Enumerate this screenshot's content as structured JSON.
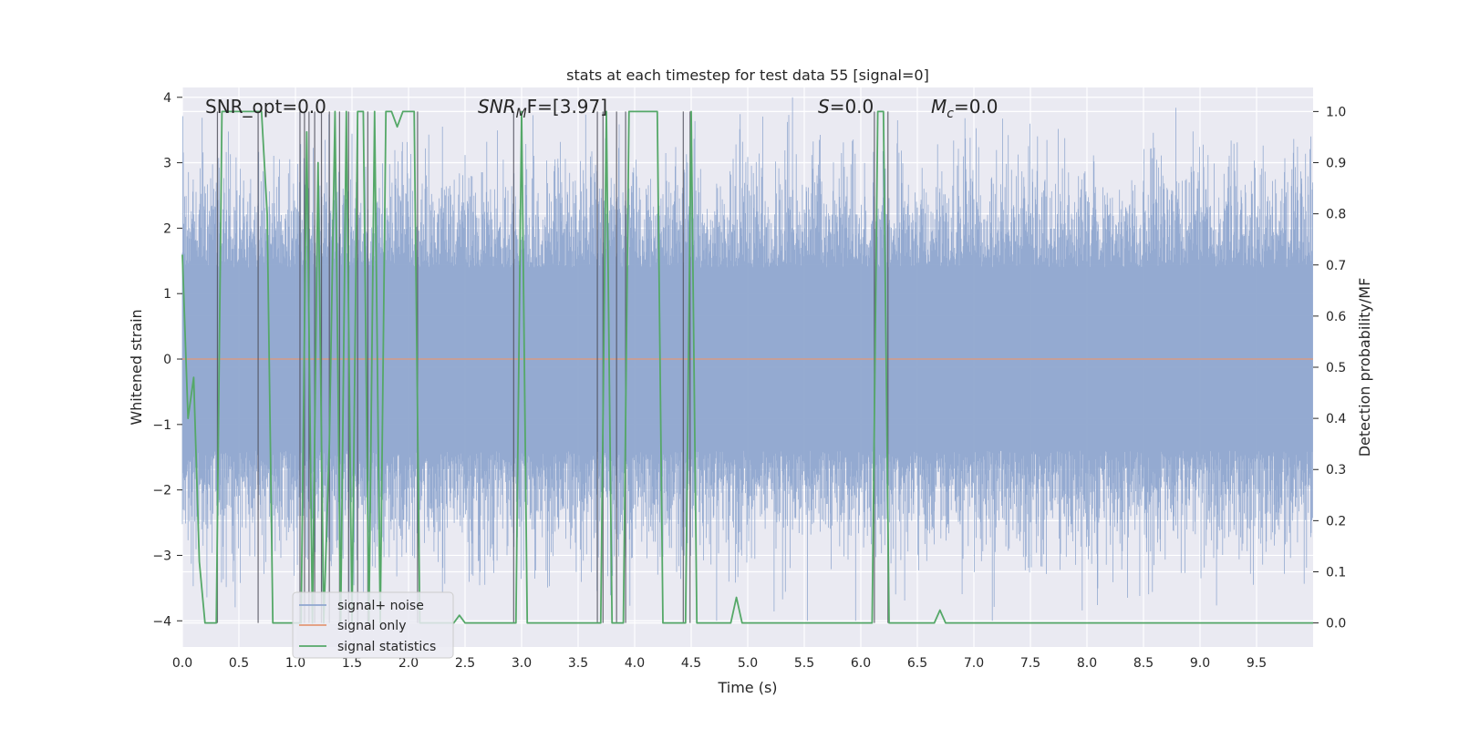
{
  "chart_data": {
    "type": "line",
    "title": "stats at each timestep for test data 55 [signal=0]",
    "xlabel": "Time (s)",
    "ylabel": "Whitened strain",
    "y2label": "Detection probability/MF",
    "xlim": [
      0.0,
      10.0
    ],
    "ylim": [
      -4.4,
      4.15
    ],
    "y2lim": [
      -0.047,
      1.047
    ],
    "xticks": [
      "0.0",
      "0.5",
      "1.0",
      "1.5",
      "2.0",
      "2.5",
      "3.0",
      "3.5",
      "4.0",
      "4.5",
      "5.0",
      "5.5",
      "6.0",
      "6.5",
      "7.0",
      "7.5",
      "8.0",
      "8.5",
      "9.0",
      "9.5"
    ],
    "yticks": [
      "4",
      "3",
      "2",
      "1",
      "0",
      "−1",
      "−2",
      "−3",
      "−4"
    ],
    "y2ticks": [
      "1.0",
      "0.9",
      "0.8",
      "0.7",
      "0.6",
      "0.5",
      "0.4",
      "0.3",
      "0.2",
      "0.1",
      "0.0"
    ],
    "grid": true,
    "legend_position": "lower-left",
    "annotations": [
      {
        "name": "snr-opt",
        "text": "SNR_opt=0.0"
      },
      {
        "name": "snr-mf",
        "text": "SNR",
        "sub": "M",
        "tail": "F=[3.97]"
      },
      {
        "name": "s-stat",
        "text": "S",
        "tail": "=0.0"
      },
      {
        "name": "mc",
        "text": "M",
        "sub": "c",
        "tail": "=0.0"
      }
    ],
    "series": [
      {
        "name": "signal+ noise",
        "color": "#8fa6cf",
        "description": "whitened strain noise, roughly symmetric around 0, amplitude about ±3.5"
      },
      {
        "name": "signal only",
        "color": "#e39877",
        "values": "constant 0"
      },
      {
        "name": "signal statistics",
        "color": "#55a868",
        "axis": "right",
        "x": [
          0.0,
          0.05,
          0.1,
          0.15,
          0.2,
          0.25,
          0.3,
          0.35,
          0.7,
          0.75,
          0.8,
          1.05,
          1.1,
          1.15,
          1.2,
          1.25,
          1.3,
          1.35,
          1.4,
          1.45,
          1.5,
          1.55,
          1.6,
          1.65,
          1.7,
          1.75,
          1.8,
          1.85,
          1.9,
          1.95,
          2.0,
          2.05,
          2.1,
          2.15,
          2.4,
          2.45,
          2.5,
          2.9,
          2.95,
          3.0,
          3.05,
          3.7,
          3.75,
          3.8,
          3.85,
          3.9,
          3.95,
          4.0,
          4.2,
          4.25,
          4.35,
          4.45,
          4.5,
          4.55,
          4.85,
          4.9,
          4.95,
          5.0,
          6.1,
          6.15,
          6.2,
          6.25,
          6.3,
          6.65,
          6.7,
          6.75,
          6.8,
          10.0
        ],
        "values": [
          0.72,
          0.4,
          0.48,
          0.12,
          0.0,
          0.0,
          0.0,
          1.0,
          1.0,
          0.8,
          0.0,
          0.0,
          0.96,
          0.0,
          0.9,
          0.0,
          0.35,
          1.0,
          0.0,
          1.0,
          0.0,
          1.0,
          1.0,
          0.0,
          1.0,
          0.0,
          1.0,
          1.0,
          0.97,
          1.0,
          1.0,
          1.0,
          0.0,
          0.0,
          0.0,
          0.015,
          0.0,
          0.0,
          0.0,
          1.0,
          0.0,
          0.0,
          1.0,
          0.0,
          0.0,
          0.0,
          1.0,
          1.0,
          1.0,
          0.0,
          0.0,
          0.0,
          1.0,
          0.0,
          0.0,
          0.05,
          0.0,
          0.0,
          0.0,
          1.0,
          1.0,
          0.0,
          0.0,
          0.0,
          0.025,
          0.0,
          0.0,
          0.0
        ]
      }
    ],
    "threshold_crossings_x": [
      0.31,
      0.67,
      1.04,
      1.08,
      1.12,
      1.17,
      1.23,
      1.3,
      1.39,
      1.47,
      1.55,
      1.64,
      2.08,
      2.93,
      3.67,
      3.72,
      3.84,
      3.92,
      4.43,
      4.49,
      6.12,
      6.24
    ]
  }
}
